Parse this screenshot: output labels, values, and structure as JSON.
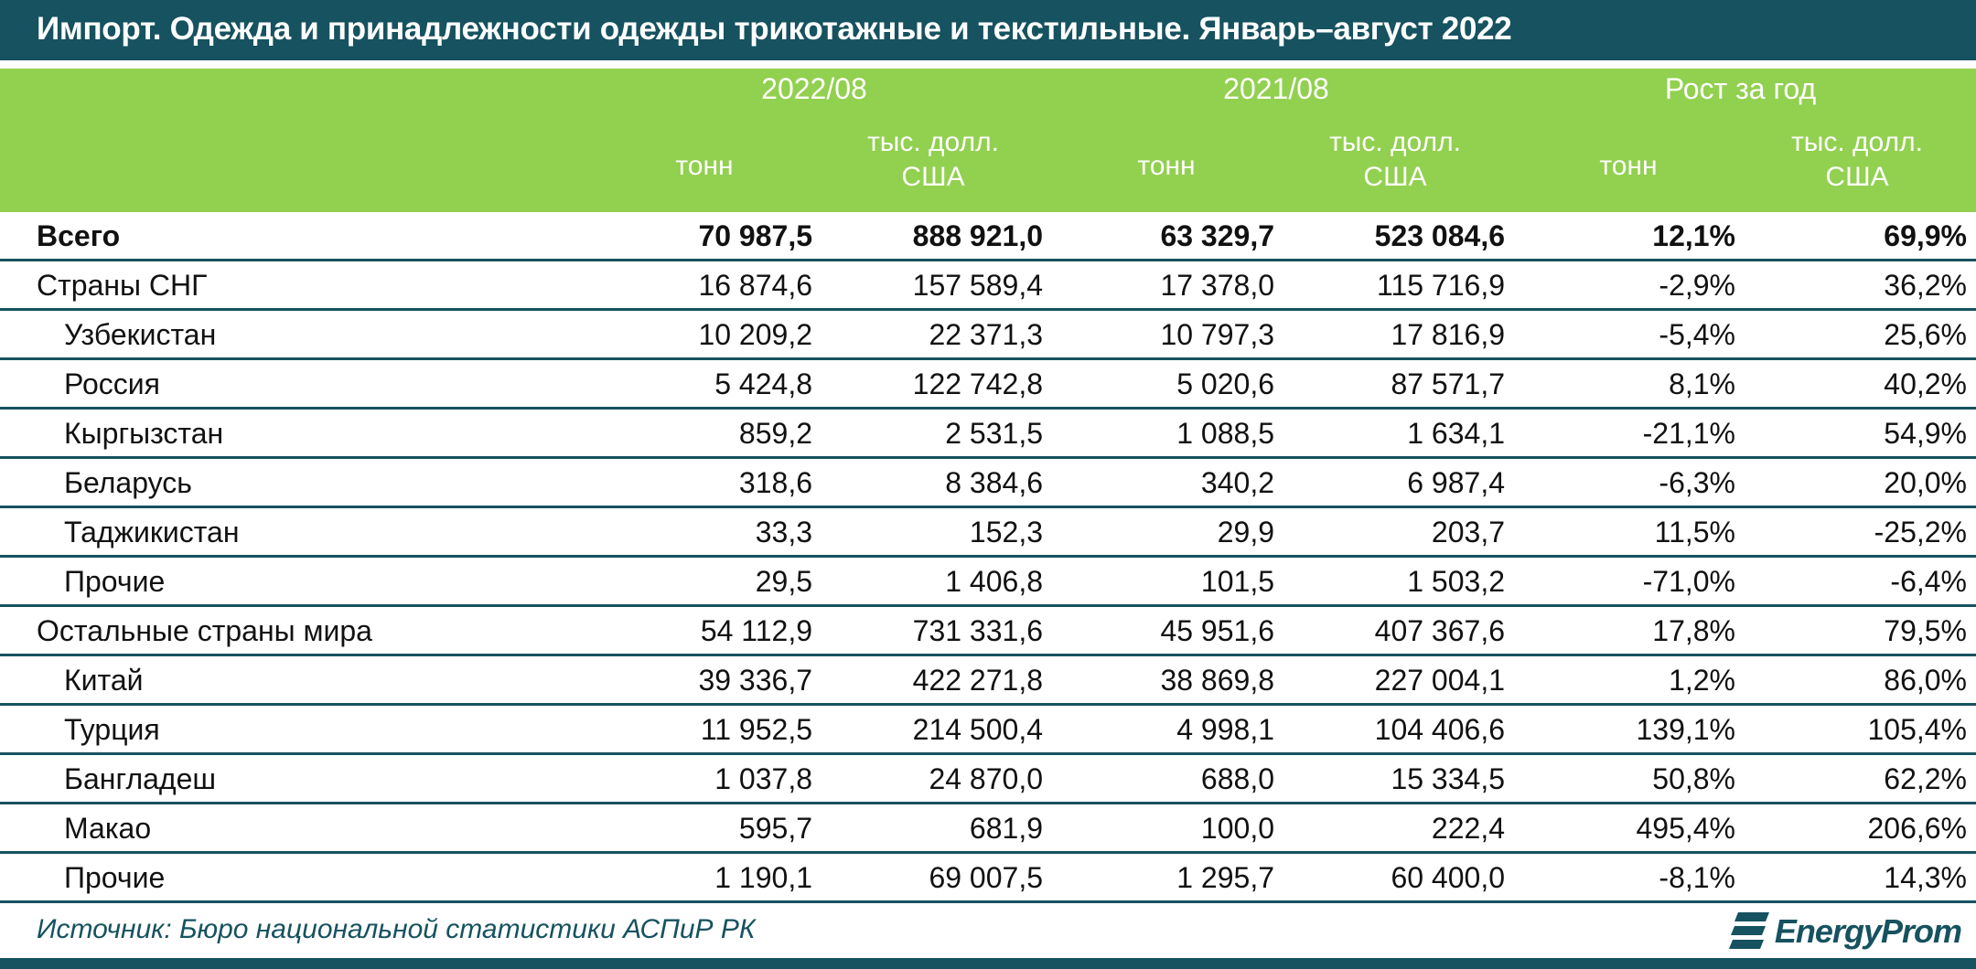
{
  "title": "Импорт. Одежда и принадлежности одежды трикотажные и текстильные. Январь–август 2022",
  "header": {
    "groups": [
      "2022/08",
      "2021/08",
      "Рост за год"
    ],
    "units": {
      "tonnes": "тонн",
      "usd_line1": "тыс. долл.",
      "usd_line2": "США"
    }
  },
  "rows": [
    {
      "label": "Всего",
      "level": 0,
      "bold": true,
      "values": [
        "70 987,5",
        "888 921,0",
        "63 329,7",
        "523 084,6",
        "12,1%",
        "69,9%"
      ]
    },
    {
      "label": "Страны СНГ",
      "level": 0,
      "bold": false,
      "values": [
        "16 874,6",
        "157 589,4",
        "17 378,0",
        "115 716,9",
        "-2,9%",
        "36,2%"
      ]
    },
    {
      "label": "Узбекистан",
      "level": 1,
      "bold": false,
      "values": [
        "10 209,2",
        "22 371,3",
        "10 797,3",
        "17 816,9",
        "-5,4%",
        "25,6%"
      ]
    },
    {
      "label": "Россия",
      "level": 1,
      "bold": false,
      "values": [
        "5 424,8",
        "122 742,8",
        "5 020,6",
        "87 571,7",
        "8,1%",
        "40,2%"
      ]
    },
    {
      "label": "Кыргызстан",
      "level": 1,
      "bold": false,
      "values": [
        "859,2",
        "2 531,5",
        "1 088,5",
        "1 634,1",
        "-21,1%",
        "54,9%"
      ]
    },
    {
      "label": "Беларусь",
      "level": 1,
      "bold": false,
      "values": [
        "318,6",
        "8 384,6",
        "340,2",
        "6 987,4",
        "-6,3%",
        "20,0%"
      ]
    },
    {
      "label": "Таджикистан",
      "level": 1,
      "bold": false,
      "values": [
        "33,3",
        "152,3",
        "29,9",
        "203,7",
        "11,5%",
        "-25,2%"
      ]
    },
    {
      "label": "Прочие",
      "level": 1,
      "bold": false,
      "values": [
        "29,5",
        "1 406,8",
        "101,5",
        "1 503,2",
        "-71,0%",
        "-6,4%"
      ]
    },
    {
      "label": "Остальные страны мира",
      "level": 0,
      "bold": false,
      "values": [
        "54 112,9",
        "731 331,6",
        "45 951,6",
        "407 367,6",
        "17,8%",
        "79,5%"
      ]
    },
    {
      "label": "Китай",
      "level": 1,
      "bold": false,
      "values": [
        "39 336,7",
        "422 271,8",
        "38 869,8",
        "227 004,1",
        "1,2%",
        "86,0%"
      ]
    },
    {
      "label": "Турция",
      "level": 1,
      "bold": false,
      "values": [
        "11 952,5",
        "214 500,4",
        "4 998,1",
        "104 406,6",
        "139,1%",
        "105,4%"
      ]
    },
    {
      "label": "Бангладеш",
      "level": 1,
      "bold": false,
      "values": [
        "1 037,8",
        "24 870,0",
        "688,0",
        "15 334,5",
        "50,8%",
        "62,2%"
      ]
    },
    {
      "label": "Макао",
      "level": 1,
      "bold": false,
      "values": [
        "595,7",
        "681,9",
        "100,0",
        "222,4",
        "495,4%",
        "206,6%"
      ]
    },
    {
      "label": "Прочие",
      "level": 1,
      "bold": false,
      "values": [
        "1 190,1",
        "69 007,5",
        "1 295,7",
        "60 400,0",
        "-8,1%",
        "14,3%"
      ]
    }
  ],
  "footer": {
    "source": "Источник: Бюро национальной статистики АСПиР РК",
    "logo_text": "EnergyProm",
    "logo_icon": "energyprom-stripes-icon"
  },
  "colors": {
    "title_bg": "#16525f",
    "header_bg": "#92d050",
    "divider": "#16525f"
  }
}
